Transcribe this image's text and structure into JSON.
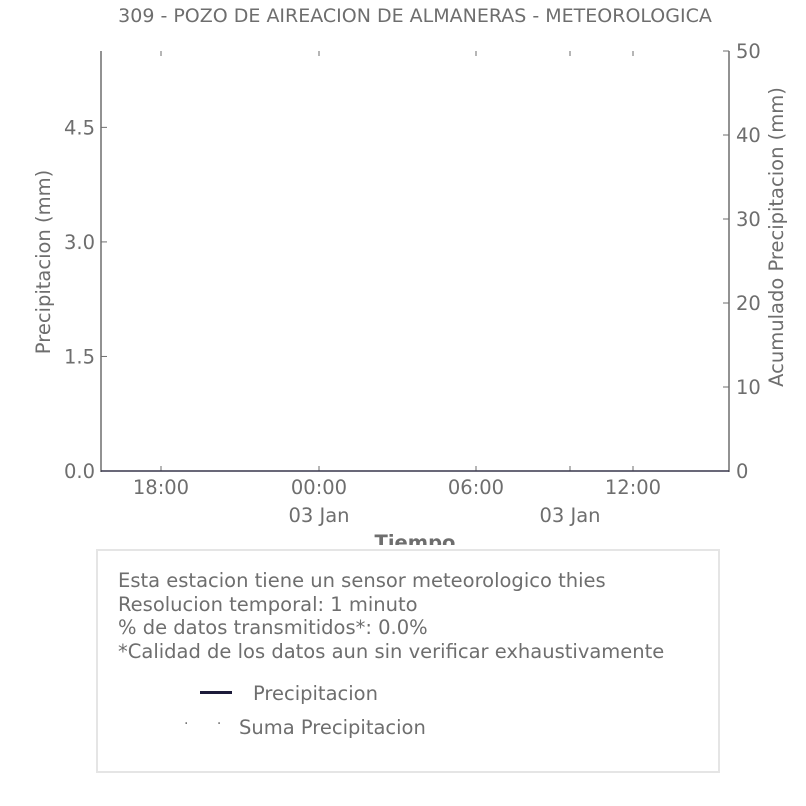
{
  "chart_data": {
    "type": "line",
    "title": "309 - POZO DE AIREACION DE ALMANERAS - METEOROLOGICA",
    "xlabel": "Tiempo",
    "ylabel": "Precipitacion (mm)",
    "y2label": "Acumulado Precipitacion (mm)",
    "x_ticks": [
      {
        "label": "18:00",
        "sub": ""
      },
      {
        "label": "00:00",
        "sub": "03 Jan"
      },
      {
        "label": "06:00",
        "sub": ""
      },
      {
        "label": "12:00",
        "sub": ""
      }
    ],
    "x_minor_sub_label": "03 Jan",
    "y_ticks": [
      "0.0",
      "1.5",
      "3.0",
      "4.5"
    ],
    "ylim": [
      0,
      5.5
    ],
    "y2_ticks": [
      "0",
      "10",
      "20",
      "30",
      "40",
      "50"
    ],
    "y2lim": [
      0,
      50
    ],
    "grid": false,
    "series": [
      {
        "name": "Precipitacion",
        "color": "#1c1b3a",
        "values": []
      },
      {
        "name": "Suma Precipitacion",
        "color": "#6e6e6e",
        "values": []
      }
    ]
  },
  "info": {
    "line1": "Esta estacion tiene un sensor meteorologico thies",
    "line2": "Resolucion temporal: 1 minuto",
    "line3": "% de datos transmitidos*: 0.0%",
    "line4": "*Calidad de los datos aun sin verificar exhaustivamente"
  },
  "legend": {
    "series1": "Precipitacion",
    "series2": "Suma Precipitacion",
    "dots_glyph": "· ·"
  }
}
